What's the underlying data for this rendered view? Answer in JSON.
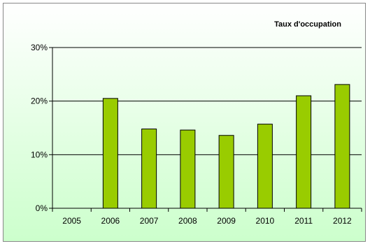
{
  "chart_data": {
    "type": "bar",
    "title": "Taux d'occupation",
    "categories": [
      "2005",
      "2006",
      "2007",
      "2008",
      "2009",
      "2010",
      "2011",
      "2012"
    ],
    "values": [
      0,
      0.205,
      0.148,
      0.146,
      0.136,
      0.157,
      0.21,
      0.231
    ],
    "ylim": [
      0,
      0.3
    ],
    "yticks": [
      0,
      0.1,
      0.2,
      0.3
    ],
    "ytick_labels": [
      "0%",
      "10%",
      "20%",
      "30%"
    ],
    "xlabel": "",
    "ylabel": "",
    "grid": true,
    "legend": "none"
  },
  "colors": {
    "bar_fill": "#99cc00",
    "bar_stroke": "#000000",
    "background_top": "#ffffff",
    "background_bottom": "#ccffcc",
    "gridline": "#000000"
  }
}
